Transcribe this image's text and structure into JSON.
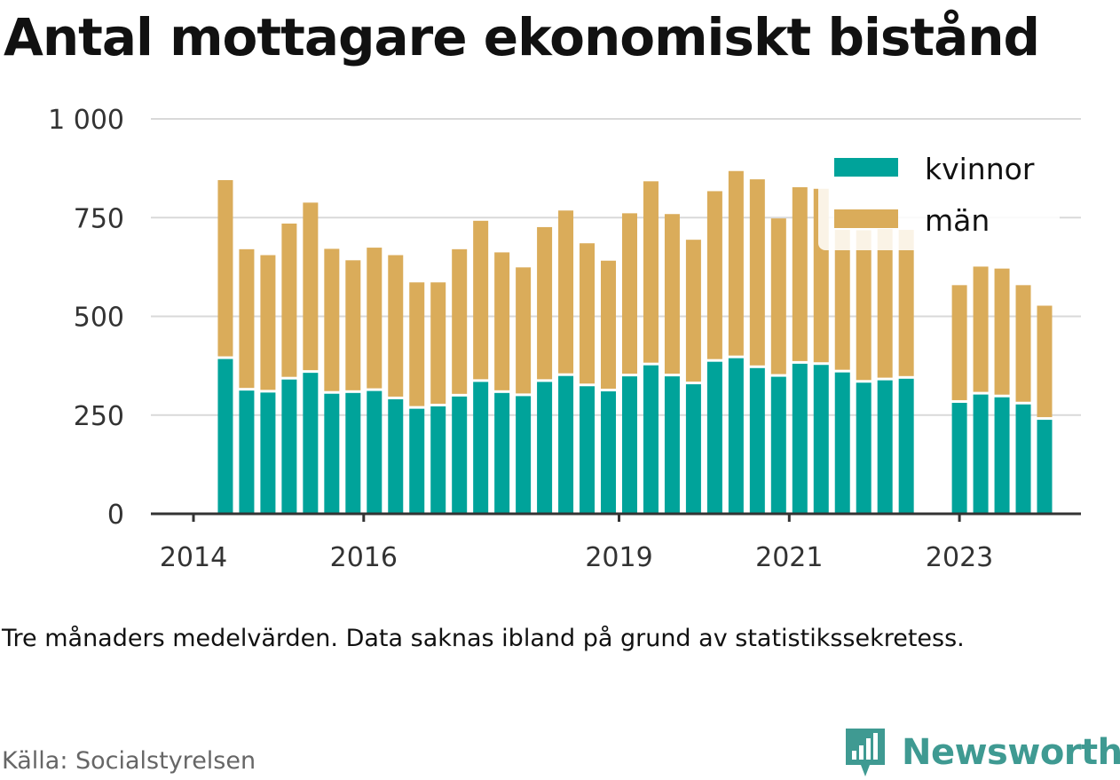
{
  "title": "Antal mottagare ekonomiskt bistånd",
  "note": "Tre månaders medelvärden. Data saknas ibland på grund av statistikssekretess.",
  "source": "Källa: Socialstyrelsen",
  "brand": {
    "name": "Newsworthy",
    "icon": "newsworthy-logo-icon",
    "color": "#3f9a92"
  },
  "chart_data": {
    "type": "bar",
    "stacked": true,
    "title": "Antal mottagare ekonomiskt bistånd",
    "xlabel": "",
    "ylabel": "",
    "ylim": [
      0,
      1000
    ],
    "yticks": [
      0,
      250,
      500,
      750,
      1000
    ],
    "ytick_labels": [
      "0",
      "250",
      "500",
      "750",
      "1 000"
    ],
    "xlim": [
      2014.0,
      2024.5
    ],
    "xticks": [
      2014,
      2016,
      2019,
      2021,
      2023
    ],
    "xtick_labels": [
      "2014",
      "2016",
      "2019",
      "2021",
      "2023"
    ],
    "grid": "horizontal",
    "legend": "top-right",
    "x": [
      2014.375,
      2014.625,
      2014.875,
      2015.125,
      2015.375,
      2015.625,
      2015.875,
      2016.125,
      2016.375,
      2016.625,
      2016.875,
      2017.125,
      2017.375,
      2017.625,
      2017.875,
      2018.125,
      2018.375,
      2018.625,
      2018.875,
      2019.125,
      2019.375,
      2019.625,
      2019.875,
      2020.125,
      2020.375,
      2020.625,
      2020.875,
      2021.125,
      2021.375,
      2021.625,
      2021.875,
      2022.125,
      2022.375,
      2023.0,
      2023.25,
      2023.5,
      2023.75,
      2024.0
    ],
    "series": [
      {
        "name": "kvinnor",
        "color": "#00a39a",
        "values": [
          392,
          312,
          307,
          340,
          357,
          304,
          306,
          311,
          290,
          266,
          272,
          297,
          334,
          306,
          298,
          334,
          349,
          323,
          310,
          348,
          376,
          348,
          328,
          385,
          394,
          369,
          347,
          380,
          377,
          358,
          332,
          338,
          342,
          281,
          302,
          295,
          277,
          238
        ]
      },
      {
        "name": "män",
        "color": "#daac5a",
        "values": [
          453,
          358,
          348,
          395,
          431,
          367,
          336,
          363,
          365,
          320,
          314,
          373,
          408,
          356,
          326,
          392,
          419,
          362,
          331,
          413,
          466,
          411,
          366,
          432,
          474,
          478,
          401,
          447,
          446,
          361,
          386,
          383,
          377,
          298,
          324,
          326,
          302,
          289
        ]
      }
    ]
  }
}
